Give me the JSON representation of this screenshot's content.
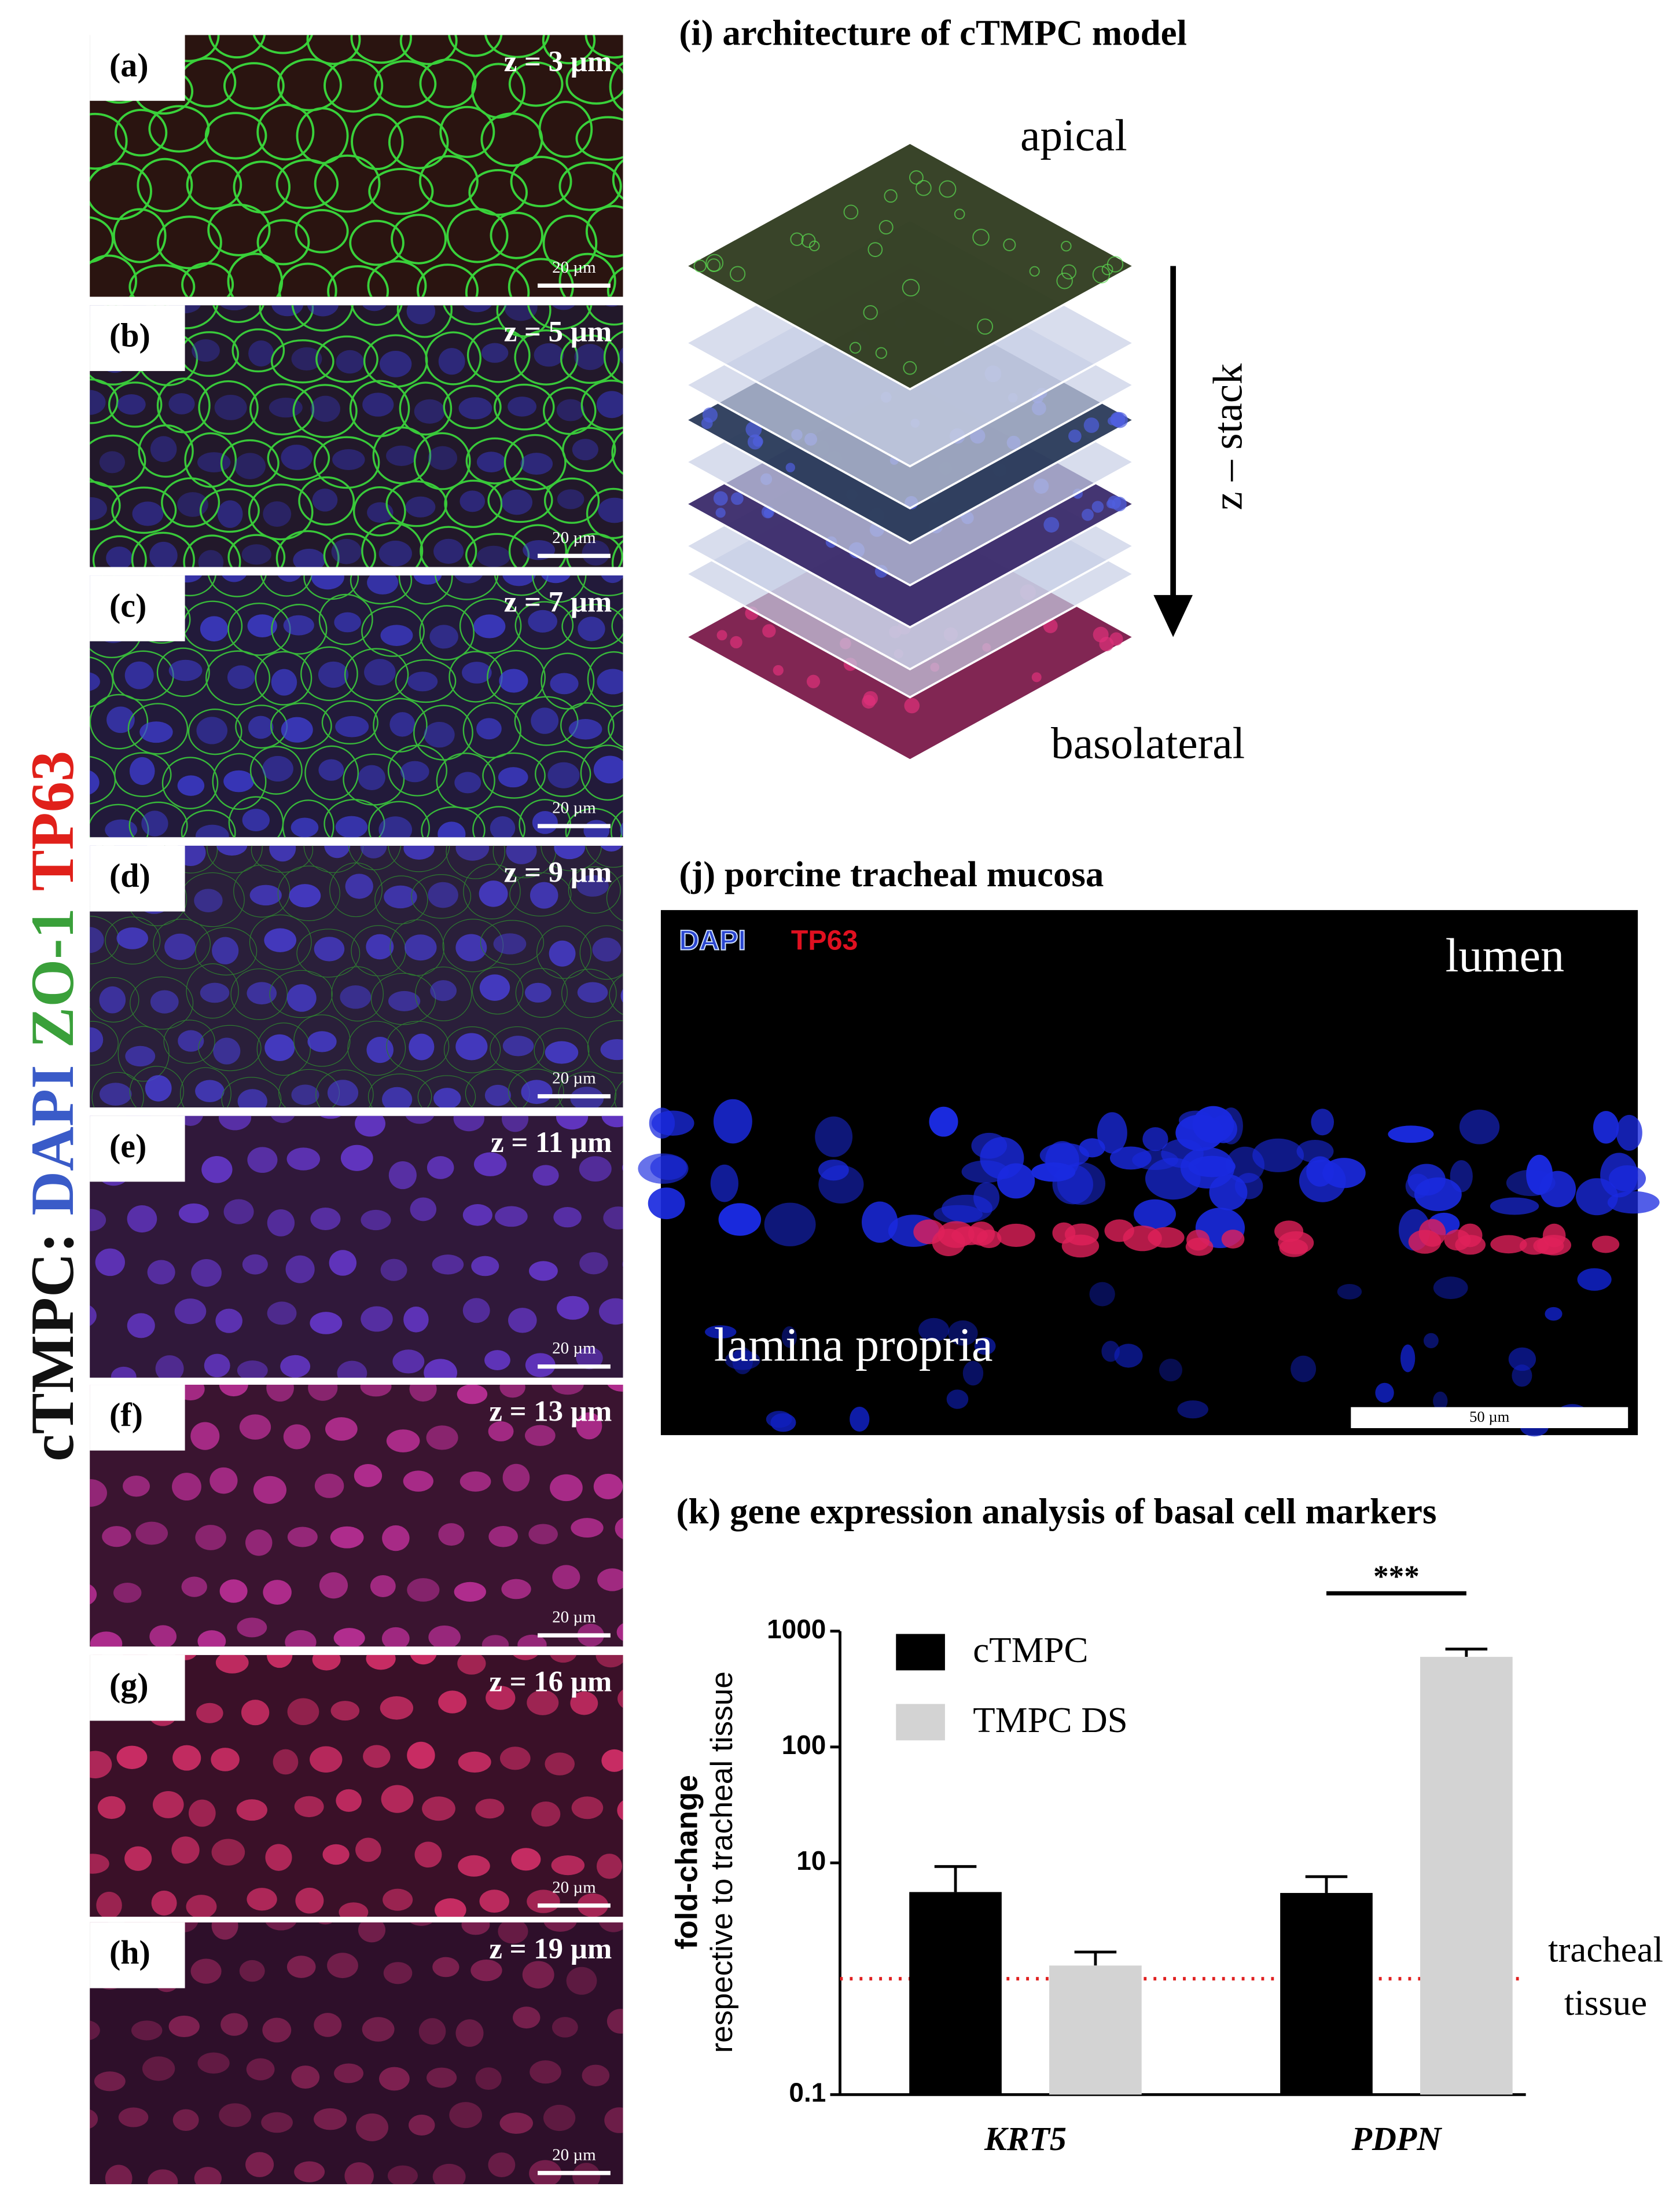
{
  "figure": {
    "side_label": {
      "prefix": "cTMPC:",
      "dapi": "DAPI",
      "zo1": "ZO-1",
      "tp63": "TP63"
    },
    "panels": [
      {
        "label": "(a)",
        "depth": "z = 3 µm",
        "scale": "20 µm"
      },
      {
        "label": "(b)",
        "depth": "z = 5 µm",
        "scale": "20 µm"
      },
      {
        "label": "(c)",
        "depth": "z = 7 µm",
        "scale": "20 µm"
      },
      {
        "label": "(d)",
        "depth": "z = 9 µm",
        "scale": "20 µm"
      },
      {
        "label": "(e)",
        "depth": "z = 11 µm",
        "scale": "20 µm"
      },
      {
        "label": "(f)",
        "depth": "z = 13 µm",
        "scale": "20 µm"
      },
      {
        "label": "(g)",
        "depth": "z = 16 µm",
        "scale": "20 µm"
      },
      {
        "label": "(h)",
        "depth": "z = 19 µm",
        "scale": "20 µm"
      }
    ],
    "architecture": {
      "title": "(i) architecture of cTMPC model",
      "apical": "apical",
      "zstack": "z – stack",
      "basolateral": "basolateral"
    },
    "mucosa": {
      "title": "(j) porcine tracheal mucosa",
      "dapi": "DAPI",
      "tp63": "TP63",
      "lumen": "lumen",
      "lamina": "lamina propria",
      "scale": "50 µm"
    }
  },
  "chart_data": {
    "type": "bar",
    "title": "(k) gene expression analysis of basal cell markers",
    "ylabel": [
      "fold-change",
      "respective to tracheal tissue"
    ],
    "categories": [
      "KRT5",
      "PDPN"
    ],
    "series": [
      {
        "name": "cTMPC",
        "color": "#000000",
        "values": [
          5.6,
          5.5
        ],
        "errors": [
          3.7,
          2.1
        ]
      },
      {
        "name": "TMPC DS",
        "color": "#d3d3d3",
        "values": [
          1.3,
          600
        ],
        "errors": [
          0.4,
          100
        ]
      }
    ],
    "ylim": [
      0.1,
      1000
    ],
    "yticks": [
      0.1,
      10,
      100,
      1000
    ],
    "log_y": true,
    "reference": {
      "value": 1,
      "color": "#e02020",
      "label": [
        "tracheal",
        "tissue"
      ]
    },
    "significance": "***"
  }
}
